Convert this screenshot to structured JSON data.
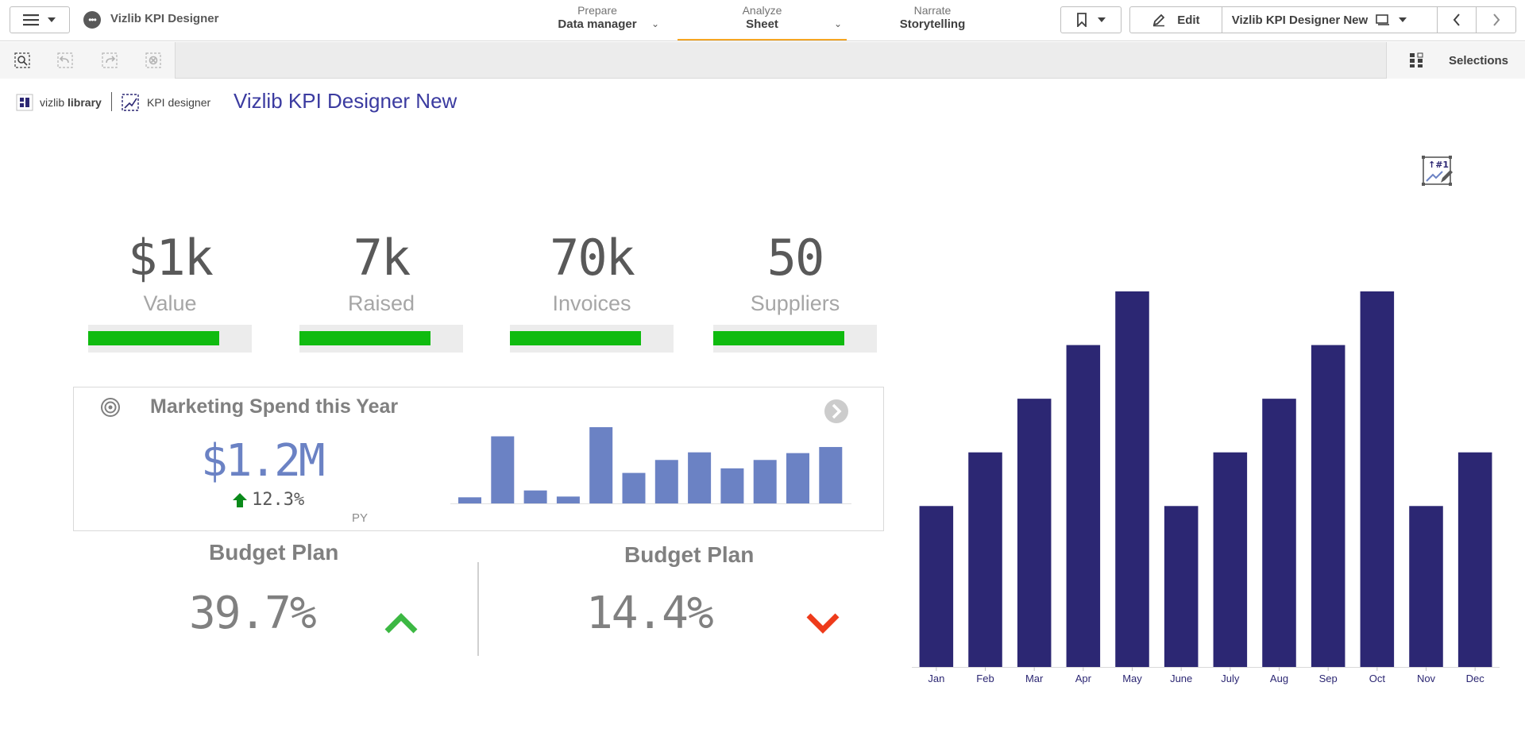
{
  "app": {
    "title": "Vizlib KPI Designer"
  },
  "nav": {
    "prepare": {
      "sub": "Prepare",
      "main": "Data manager"
    },
    "analyze": {
      "sub": "Analyze",
      "main": "Sheet"
    },
    "narrate": {
      "sub": "Narrate",
      "main": "Storytelling"
    }
  },
  "toolbar": {
    "edit_label": "Edit",
    "sheet_name": "Vizlib KPI Designer New",
    "selections_label": "Selections"
  },
  "sheet": {
    "logo_vizlib_prefix": "vizlib",
    "logo_vizlib_suffix": "library",
    "logo_kpi": "KPI designer",
    "title": "Vizlib KPI Designer New"
  },
  "kpis": [
    {
      "value": "$1k",
      "label": "Value",
      "progress": 0.8
    },
    {
      "value": "7k",
      "label": "Raised",
      "progress": 0.8
    },
    {
      "value": "70k",
      "label": "Invoices",
      "progress": 0.8
    },
    {
      "value": "50",
      "label": "Suppliers",
      "progress": 0.8
    }
  ],
  "marketing": {
    "title": "Marketing Spend this Year",
    "value": "$1.2M",
    "delta": "12.3%",
    "py_label": "PY",
    "sparkline": [
      0.08,
      0.88,
      0.17,
      0.09,
      1.0,
      0.4,
      0.57,
      0.67,
      0.46,
      0.57,
      0.66,
      0.74
    ],
    "bar_color": "#6b82c4"
  },
  "budgets": [
    {
      "title": "Budget Plan",
      "value": "39.7%",
      "trend": "up",
      "color": "#3cb843"
    },
    {
      "title": "Budget Plan",
      "value": "14.4%",
      "trend": "down",
      "color": "#ee3b1b"
    }
  ],
  "chart_data": {
    "type": "bar",
    "categories": [
      "Jan",
      "Feb",
      "Mar",
      "Apr",
      "May",
      "June",
      "July",
      "Aug",
      "Sep",
      "Oct",
      "Nov",
      "Dec"
    ],
    "values": [
      3,
      4,
      5,
      6,
      7,
      3,
      4,
      5,
      6,
      7,
      3,
      4
    ],
    "ylim": [
      0,
      7
    ],
    "grid": false,
    "color": "#2c2773",
    "xlabel": "",
    "ylabel": "",
    "title": ""
  }
}
